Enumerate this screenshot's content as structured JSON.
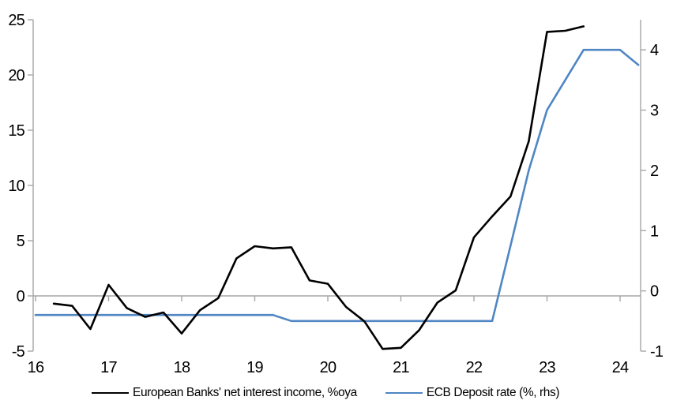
{
  "chart_data": {
    "type": "line",
    "title": "",
    "xlabel": "",
    "ylabel_left": "",
    "ylabel_right": "",
    "grid": "zero-line-only",
    "x_axis": {
      "ticks": [
        16,
        17,
        18,
        19,
        20,
        21,
        22,
        23,
        24
      ],
      "range": [
        16,
        24.3
      ]
    },
    "left_axis": {
      "ticks": [
        -5,
        0,
        5,
        10,
        15,
        20,
        25
      ],
      "range": [
        -5,
        25
      ]
    },
    "right_axis": {
      "ticks": [
        -1,
        0,
        1,
        2,
        3,
        4
      ],
      "range": [
        -1,
        4.5
      ]
    },
    "legend": {
      "position": "bottom-center"
    },
    "series": [
      {
        "name": "European Banks' net interest income, %oya",
        "axis": "left",
        "color": "#000000",
        "points": [
          [
            16.25,
            -0.7
          ],
          [
            16.5,
            -0.9
          ],
          [
            16.75,
            -3.0
          ],
          [
            17.0,
            1.0
          ],
          [
            17.25,
            -1.1
          ],
          [
            17.5,
            -1.9
          ],
          [
            17.75,
            -1.5
          ],
          [
            18.0,
            -3.4
          ],
          [
            18.25,
            -1.3
          ],
          [
            18.5,
            -0.2
          ],
          [
            18.75,
            3.4
          ],
          [
            19.0,
            4.5
          ],
          [
            19.25,
            4.3
          ],
          [
            19.5,
            4.4
          ],
          [
            19.75,
            1.4
          ],
          [
            20.0,
            1.1
          ],
          [
            20.25,
            -1.0
          ],
          [
            20.5,
            -2.3
          ],
          [
            20.75,
            -4.8
          ],
          [
            21.0,
            -4.7
          ],
          [
            21.25,
            -3.1
          ],
          [
            21.5,
            -0.6
          ],
          [
            21.75,
            0.5
          ],
          [
            22.0,
            5.3
          ],
          [
            22.25,
            7.2
          ],
          [
            22.5,
            9.0
          ],
          [
            22.75,
            14.0
          ],
          [
            23.0,
            23.9
          ],
          [
            23.25,
            24.0
          ],
          [
            23.5,
            24.4
          ]
        ]
      },
      {
        "name": "ECB Deposit rate (%, rhs)",
        "axis": "right",
        "color": "#4f86c3",
        "points": [
          [
            16.0,
            -0.4
          ],
          [
            19.25,
            -0.4
          ],
          [
            19.5,
            -0.5
          ],
          [
            22.25,
            -0.5
          ],
          [
            22.5,
            0.75
          ],
          [
            22.75,
            2.0
          ],
          [
            23.0,
            3.0
          ],
          [
            23.25,
            3.5
          ],
          [
            23.5,
            4.0
          ],
          [
            24.0,
            4.0
          ],
          [
            24.25,
            3.75
          ]
        ]
      }
    ]
  },
  "colors": {
    "axis": "#a6a6a6",
    "zero_gridline": "#a6a6a6",
    "label_text": "#000000",
    "background": "#ffffff",
    "nii_line": "#000000",
    "ecb_line": "#4f86c3"
  }
}
